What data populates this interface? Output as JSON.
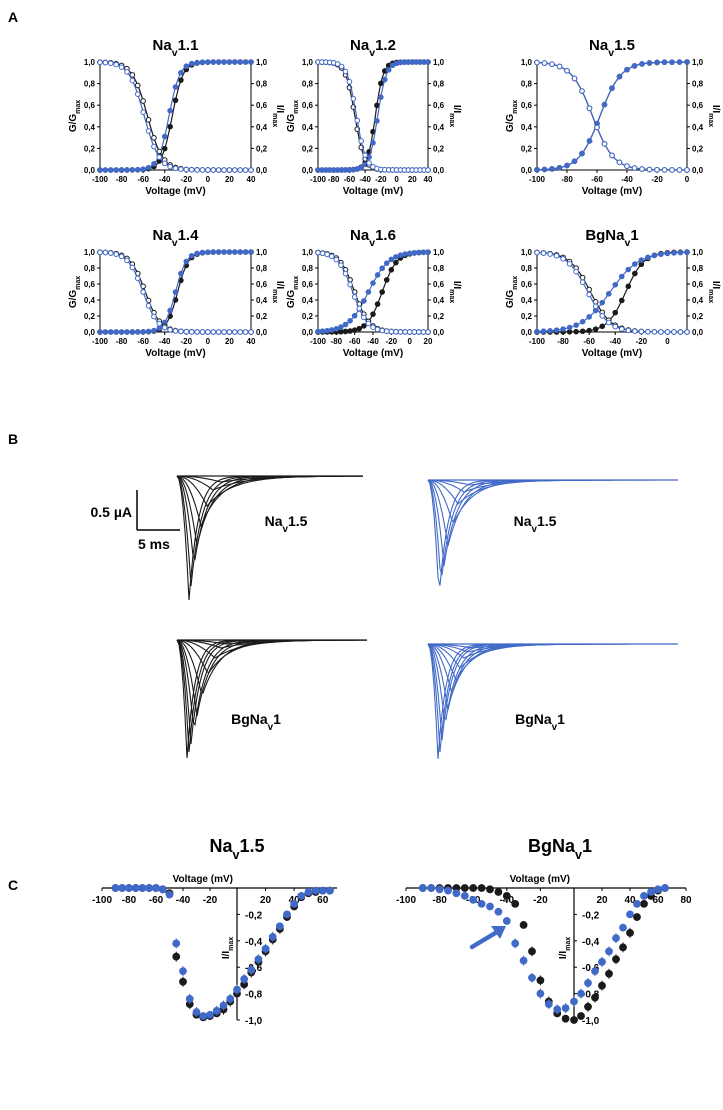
{
  "panel_labels": {
    "A": "A",
    "B": "B",
    "C": "C"
  },
  "colors": {
    "black": "#1a1a1a",
    "blue": "#4169c8",
    "blue_light": "#6f8fd9"
  },
  "panelA": {
    "xlabel": "Voltage (mV)",
    "ylabel_left_main": "G/G",
    "ylabel_left_sub": "max",
    "ylabel_right_main": "I/I",
    "ylabel_right_sub": "max",
    "yticks": [
      "0,0",
      "0,2",
      "0,4",
      "0,6",
      "0,8",
      "1,0"
    ]
  },
  "panelB": {
    "scale_current": "0.5 µA",
    "scale_time": "5 ms",
    "labels": [
      {
        "main": "Na",
        "sub": "v",
        "tail": "1.5"
      },
      {
        "main": "Na",
        "sub": "v",
        "tail": "1.5"
      },
      {
        "main": "BgNa",
        "sub": "v",
        "tail": "1"
      },
      {
        "main": "BgNa",
        "sub": "v",
        "tail": "1"
      }
    ]
  },
  "panelC": {
    "xlabel": "Voltage (mV)",
    "ylabel_main": "I/I",
    "ylabel_sub": "max",
    "titles": [
      {
        "main": "Na",
        "sub": "v",
        "tail": "1.5"
      },
      {
        "main": "BgNa",
        "sub": "v",
        "tail": "1"
      }
    ],
    "yticks": [
      "-0,2",
      "-0,4",
      "-0,6",
      "-0,8",
      "-1,0"
    ]
  },
  "chart_data": [
    {
      "type": "scatter",
      "title_main": "Na",
      "title_sub": "v",
      "title_tail": "1.1",
      "xlim": [
        -100,
        40
      ],
      "ylim": [
        0,
        1
      ],
      "xticks": [
        -100,
        -80,
        -60,
        -40,
        -20,
        0,
        20,
        40
      ],
      "series": [
        {
          "color": "black",
          "kind": "activation",
          "v_half": -33,
          "slope": 5
        },
        {
          "color": "blue",
          "kind": "activation",
          "v_half": -36,
          "slope": 5
        },
        {
          "color": "black",
          "kind": "inactivation",
          "v_half": -56,
          "slope": 7
        },
        {
          "color": "blue",
          "kind": "inactivation",
          "v_half": -59,
          "slope": 7
        }
      ]
    },
    {
      "type": "scatter",
      "title_main": "Na",
      "title_sub": "v",
      "title_tail": "1.2",
      "xlim": [
        -100,
        40
      ],
      "ylim": [
        0,
        1
      ],
      "xticks": [
        -100,
        -80,
        -60,
        -40,
        -20,
        0,
        20,
        40
      ],
      "series": [
        {
          "color": "black",
          "kind": "activation",
          "v_half": -27,
          "slope": 5
        },
        {
          "color": "blue",
          "kind": "activation",
          "v_half": -24,
          "slope": 5.5
        },
        {
          "color": "black",
          "kind": "inactivation",
          "v_half": -53,
          "slope": 6
        },
        {
          "color": "blue",
          "kind": "inactivation",
          "v_half": -51,
          "slope": 6
        }
      ]
    },
    {
      "type": "scatter",
      "title_main": "Na",
      "title_sub": "v",
      "title_tail": "1.5",
      "xlim": [
        -100,
        0
      ],
      "ylim": [
        0,
        1
      ],
      "xticks": [
        -100,
        -80,
        -60,
        -40,
        -20,
        0
      ],
      "series": [
        {
          "color": "black",
          "kind": "activation",
          "v_half": -58,
          "slope": 7
        },
        {
          "color": "blue",
          "kind": "activation",
          "v_half": -58,
          "slope": 7
        },
        {
          "color": "black",
          "kind": "inactivation",
          "v_half": -63,
          "slope": 7
        },
        {
          "color": "blue",
          "kind": "inactivation",
          "v_half": -63,
          "slope": 7
        }
      ]
    },
    {
      "type": "scatter",
      "title_main": "Na",
      "title_sub": "v",
      "title_tail": "1.4",
      "xlim": [
        -100,
        40
      ],
      "ylim": [
        0,
        1
      ],
      "xticks": [
        -100,
        -80,
        -60,
        -40,
        -20,
        0,
        20,
        40
      ],
      "series": [
        {
          "color": "black",
          "kind": "activation",
          "v_half": -28,
          "slope": 5
        },
        {
          "color": "blue",
          "kind": "activation",
          "v_half": -30,
          "slope": 5
        },
        {
          "color": "black",
          "kind": "inactivation",
          "v_half": -58,
          "slope": 7
        },
        {
          "color": "blue",
          "kind": "inactivation",
          "v_half": -60,
          "slope": 7
        }
      ]
    },
    {
      "type": "scatter",
      "title_main": "Na",
      "title_sub": "v",
      "title_tail": "1.6",
      "xlim": [
        -100,
        20
      ],
      "ylim": [
        0,
        1
      ],
      "xticks": [
        -100,
        -80,
        -60,
        -40,
        -20,
        0,
        20
      ],
      "series": [
        {
          "color": "black",
          "kind": "activation",
          "v_half": -30,
          "slope": 8
        },
        {
          "color": "blue",
          "kind": "activation",
          "v_half": -45,
          "slope": 11
        },
        {
          "color": "black",
          "kind": "inactivation",
          "v_half": -60,
          "slope": 8
        },
        {
          "color": "blue",
          "kind": "inactivation",
          "v_half": -62,
          "slope": 8
        }
      ]
    },
    {
      "type": "scatter",
      "title_main": "BgNa",
      "title_sub": "v",
      "title_tail": "1",
      "xlim": [
        -100,
        15
      ],
      "ylim": [
        0,
        1
      ],
      "xticks": [
        -100,
        -80,
        -60,
        -40,
        -20,
        0
      ],
      "series": [
        {
          "color": "black",
          "kind": "activation",
          "v_half": -32,
          "slope": 7
        },
        {
          "color": "blue",
          "kind": "activation",
          "v_half": -44,
          "slope": 11
        },
        {
          "color": "black",
          "kind": "inactivation",
          "v_half": -59,
          "slope": 8
        },
        {
          "color": "blue",
          "kind": "inactivation",
          "v_half": -61,
          "slope": 8
        }
      ]
    },
    {
      "type": "scatter",
      "title_main": "Na",
      "title_sub": "v",
      "title_tail": "1.5",
      "xlim": [
        -100,
        70
      ],
      "ylim": [
        -1,
        0
      ],
      "xticks": [
        -100,
        -80,
        -60,
        -40,
        -20,
        20,
        40,
        60
      ],
      "series": [
        {
          "color": "black",
          "x": [
            -90,
            -85,
            -80,
            -75,
            -70,
            -65,
            -60,
            -55,
            -50,
            -45,
            -40,
            -35,
            -30,
            -25,
            -20,
            -15,
            -10,
            -5,
            0,
            5,
            10,
            15,
            20,
            25,
            30,
            35,
            40,
            45,
            50,
            55,
            60,
            65
          ],
          "y": [
            0,
            0,
            0,
            0,
            0,
            0,
            0,
            -0.01,
            -0.04,
            -0.52,
            -0.71,
            -0.88,
            -0.96,
            -0.98,
            -0.97,
            -0.95,
            -0.92,
            -0.86,
            -0.8,
            -0.73,
            -0.64,
            -0.56,
            -0.48,
            -0.39,
            -0.31,
            -0.22,
            -0.14,
            -0.07,
            -0.04,
            -0.03,
            -0.02,
            -0.02
          ]
        },
        {
          "color": "blue",
          "x": [
            -90,
            -85,
            -80,
            -75,
            -70,
            -65,
            -60,
            -55,
            -50,
            -45,
            -40,
            -35,
            -30,
            -25,
            -20,
            -15,
            -10,
            -5,
            0,
            5,
            10,
            15,
            20,
            25,
            30,
            35,
            40,
            45,
            50,
            55,
            60,
            65
          ],
          "y": [
            0,
            0,
            0,
            0,
            0,
            0,
            0,
            -0.01,
            -0.05,
            -0.42,
            -0.63,
            -0.84,
            -0.94,
            -0.97,
            -0.96,
            -0.93,
            -0.89,
            -0.84,
            -0.77,
            -0.69,
            -0.62,
            -0.54,
            -0.46,
            -0.37,
            -0.29,
            -0.2,
            -0.12,
            -0.06,
            -0.03,
            -0.02,
            -0.02,
            -0.02
          ]
        }
      ]
    },
    {
      "type": "scatter",
      "title_main": "BgNa",
      "title_sub": "v",
      "title_tail": "1",
      "xlim": [
        -100,
        80
      ],
      "ylim": [
        -1,
        0
      ],
      "xticks": [
        -100,
        -80,
        -60,
        -40,
        -20,
        20,
        40,
        60,
        80
      ],
      "series": [
        {
          "color": "black",
          "x": [
            -90,
            -85,
            -80,
            -75,
            -70,
            -65,
            -60,
            -55,
            -50,
            -45,
            -40,
            -35,
            -30,
            -25,
            -20,
            -15,
            -10,
            -5,
            0,
            5,
            10,
            15,
            20,
            25,
            30,
            35,
            40,
            45,
            50,
            55,
            60,
            65
          ],
          "y": [
            0,
            0,
            0,
            0,
            0,
            0,
            0,
            0,
            -0.01,
            -0.03,
            -0.06,
            -0.12,
            -0.28,
            -0.48,
            -0.7,
            -0.86,
            -0.95,
            -0.99,
            -1.0,
            -0.97,
            -0.9,
            -0.83,
            -0.74,
            -0.65,
            -0.54,
            -0.45,
            -0.34,
            -0.22,
            -0.12,
            -0.06,
            -0.02,
            0
          ]
        },
        {
          "color": "blue",
          "x": [
            -90,
            -85,
            -80,
            -75,
            -70,
            -65,
            -60,
            -55,
            -50,
            -45,
            -40,
            -35,
            -30,
            -25,
            -20,
            -15,
            -10,
            -5,
            0,
            5,
            10,
            15,
            20,
            25,
            30,
            35,
            40,
            45,
            50,
            55,
            60,
            65
          ],
          "y": [
            0,
            0,
            -0.01,
            -0.02,
            -0.04,
            -0.06,
            -0.09,
            -0.12,
            -0.14,
            -0.18,
            -0.25,
            -0.42,
            -0.55,
            -0.68,
            -0.8,
            -0.88,
            -0.92,
            -0.91,
            -0.86,
            -0.8,
            -0.72,
            -0.63,
            -0.56,
            -0.48,
            -0.38,
            -0.3,
            -0.2,
            -0.12,
            -0.06,
            -0.03,
            -0.01,
            0
          ]
        }
      ]
    }
  ]
}
